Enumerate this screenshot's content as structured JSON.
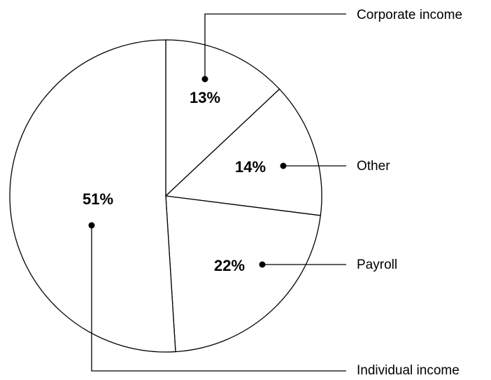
{
  "chart_data": {
    "type": "pie",
    "categories": [
      "Corporate income",
      "Other",
      "Payroll",
      "Individual income"
    ],
    "values": [
      13,
      14,
      22,
      51
    ],
    "value_labels": [
      "13%",
      "14%",
      "22%",
      "51%"
    ],
    "color": "#ffffff"
  }
}
